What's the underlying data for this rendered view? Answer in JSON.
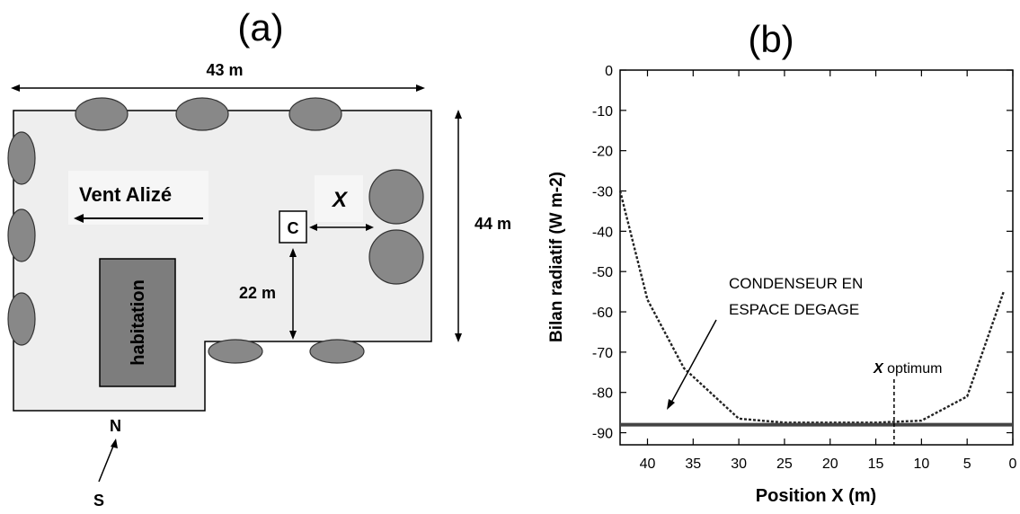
{
  "panel_a": {
    "label": "(a)",
    "width_label": "43 m",
    "height_label": "44 m",
    "distance_label": "22 m",
    "wind_label": "Vent Alizé",
    "x_label": "X",
    "condenser_label": "C",
    "house_label": "habitation",
    "north_label": "N",
    "south_label": "S",
    "colors": {
      "plot_fill": "#eeeeee",
      "tree_fill": "#888888",
      "house_fill": "#7d7d7d"
    }
  },
  "panel_b": {
    "label": "(b)",
    "annotation_line1": "CONDENSEUR EN",
    "annotation_line2": "ESPACE DEGAGE",
    "optimum_var": "X",
    "optimum_text": " optimum"
  },
  "chart_data": {
    "type": "line",
    "title": "(b)",
    "xlabel": "Position X (m)",
    "ylabel": "Bilan radiatif (W m-2)",
    "xlim": [
      43,
      0
    ],
    "ylim": [
      -93,
      0
    ],
    "x_ticks": [
      40,
      35,
      30,
      25,
      20,
      15,
      10,
      5,
      0
    ],
    "y_ticks": [
      0,
      -10,
      -20,
      -30,
      -40,
      -50,
      -60,
      -70,
      -80,
      -90
    ],
    "series": [
      {
        "style": "dotted",
        "x": [
          43,
          40,
          36,
          30,
          25,
          20,
          15,
          10,
          5,
          1
        ],
        "y": [
          -30,
          -57,
          -74,
          -86.5,
          -87.5,
          -87.5,
          -87.5,
          -87,
          -81,
          -55
        ]
      },
      {
        "style": "solid",
        "x": [
          43,
          0
        ],
        "y": [
          -88,
          -88
        ]
      }
    ],
    "optimum_x": 13,
    "grid": false
  }
}
